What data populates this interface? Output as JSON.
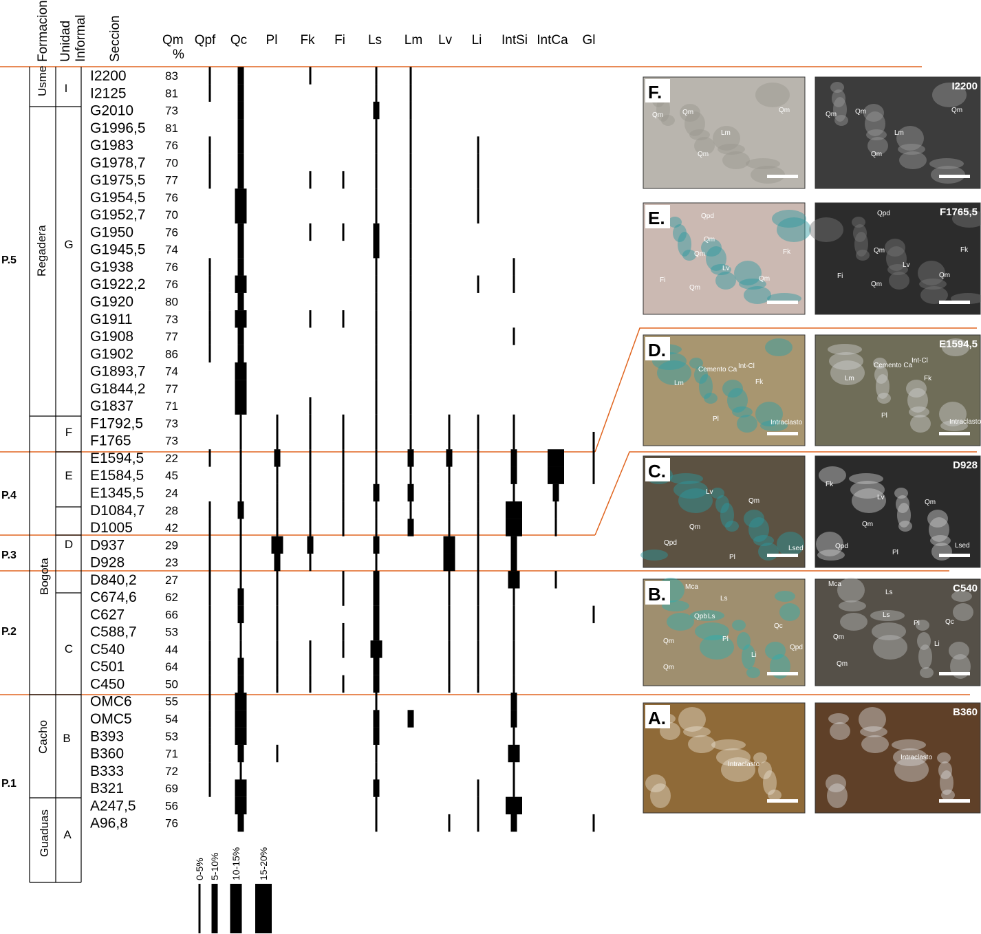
{
  "headers": {
    "formacion": "Formacion",
    "unidad": "Unidad",
    "informal": "Informal",
    "seccion": "Seccion",
    "qm": "Qm",
    "qm_unit": "%"
  },
  "columns": [
    {
      "name": "Qpf",
      "classes": [
        1,
        1,
        0,
        0,
        1,
        1,
        1,
        0,
        0,
        0,
        0,
        1,
        1,
        1,
        1,
        1,
        1,
        0,
        0,
        0,
        0,
        0,
        1,
        0,
        0,
        1,
        1,
        1,
        1,
        1,
        1,
        1,
        1,
        1,
        1,
        1,
        1,
        1,
        1,
        1,
        1,
        1,
        0,
        0
      ]
    },
    {
      "name": "Qc",
      "classes": [
        2,
        2,
        2,
        2,
        2,
        2,
        2,
        3,
        3,
        2,
        2,
        2,
        3,
        2,
        3,
        2,
        2,
        3,
        3,
        3,
        1,
        1,
        1,
        1,
        1,
        2,
        1,
        1,
        1,
        1,
        2,
        2,
        1,
        1,
        2,
        2,
        3,
        3,
        3,
        2,
        1,
        3,
        3,
        2
      ]
    },
    {
      "name": "Pl",
      "classes": [
        0,
        0,
        0,
        0,
        0,
        0,
        0,
        0,
        0,
        0,
        0,
        0,
        0,
        0,
        0,
        0,
        0,
        0,
        0,
        0,
        1,
        1,
        2,
        1,
        1,
        1,
        1,
        3,
        2,
        1,
        1,
        1,
        1,
        1,
        1,
        1,
        0,
        0,
        0,
        1,
        0,
        0,
        0,
        0
      ]
    },
    {
      "name": "Fk",
      "classes": [
        1,
        0,
        0,
        0,
        0,
        0,
        1,
        0,
        0,
        1,
        0,
        0,
        0,
        0,
        1,
        0,
        0,
        0,
        0,
        1,
        1,
        1,
        1,
        1,
        1,
        1,
        1,
        2,
        1,
        0,
        0,
        0,
        0,
        1,
        1,
        1,
        0,
        0,
        0,
        0,
        0,
        0,
        0,
        0
      ]
    },
    {
      "name": "Fi",
      "classes": [
        0,
        0,
        0,
        0,
        0,
        0,
        1,
        0,
        0,
        1,
        0,
        0,
        0,
        0,
        1,
        0,
        0,
        0,
        0,
        0,
        1,
        1,
        1,
        1,
        1,
        1,
        1,
        0,
        0,
        1,
        1,
        0,
        1,
        1,
        0,
        1,
        0,
        0,
        0,
        0,
        0,
        0,
        0,
        0
      ]
    },
    {
      "name": "Ls",
      "classes": [
        1,
        1,
        2,
        1,
        1,
        1,
        1,
        1,
        1,
        2,
        2,
        1,
        1,
        1,
        1,
        1,
        1,
        1,
        1,
        1,
        1,
        1,
        1,
        1,
        2,
        1,
        1,
        2,
        1,
        2,
        2,
        2,
        2,
        3,
        2,
        2,
        1,
        2,
        2,
        1,
        1,
        2,
        1,
        1
      ]
    },
    {
      "name": "Lm",
      "classes": [
        1,
        1,
        1,
        1,
        1,
        1,
        1,
        1,
        1,
        1,
        1,
        1,
        1,
        1,
        1,
        1,
        1,
        1,
        1,
        1,
        1,
        1,
        2,
        1,
        2,
        1,
        2,
        0,
        0,
        0,
        0,
        0,
        0,
        0,
        0,
        0,
        0,
        2,
        0,
        0,
        0,
        0,
        0,
        0
      ]
    },
    {
      "name": "Lv",
      "classes": [
        0,
        0,
        0,
        0,
        0,
        0,
        0,
        0,
        0,
        0,
        0,
        0,
        0,
        0,
        0,
        0,
        0,
        0,
        0,
        0,
        1,
        1,
        2,
        1,
        1,
        1,
        1,
        3,
        3,
        1,
        1,
        1,
        1,
        1,
        1,
        1,
        0,
        0,
        0,
        0,
        0,
        0,
        0,
        1
      ]
    },
    {
      "name": "Li",
      "classes": [
        0,
        0,
        0,
        0,
        1,
        1,
        1,
        1,
        1,
        0,
        0,
        0,
        1,
        0,
        0,
        0,
        0,
        0,
        0,
        0,
        1,
        1,
        1,
        1,
        1,
        1,
        1,
        1,
        1,
        1,
        1,
        1,
        1,
        1,
        1,
        1,
        0,
        0,
        0,
        0,
        0,
        1,
        1,
        1
      ]
    },
    {
      "name": "IntSi",
      "classes": [
        0,
        0,
        0,
        0,
        0,
        0,
        0,
        0,
        0,
        0,
        0,
        1,
        1,
        0,
        0,
        1,
        0,
        0,
        0,
        0,
        1,
        1,
        2,
        2,
        1,
        4,
        4,
        2,
        2,
        3,
        1,
        1,
        1,
        1,
        1,
        1,
        2,
        2,
        1,
        3,
        1,
        1,
        4,
        2
      ]
    },
    {
      "name": "IntCa",
      "classes": [
        0,
        0,
        0,
        0,
        0,
        0,
        0,
        0,
        0,
        0,
        0,
        0,
        0,
        0,
        0,
        0,
        0,
        0,
        0,
        0,
        0,
        0,
        4,
        4,
        2,
        1,
        1,
        0,
        0,
        1,
        0,
        0,
        0,
        0,
        0,
        0,
        0,
        0,
        0,
        0,
        0,
        0,
        0,
        0
      ]
    },
    {
      "name": "Gl",
      "classes": [
        0,
        0,
        0,
        0,
        0,
        0,
        0,
        0,
        0,
        0,
        0,
        0,
        0,
        0,
        0,
        0,
        0,
        0,
        0,
        0,
        0,
        1,
        1,
        1,
        0,
        0,
        0,
        0,
        0,
        0,
        0,
        1,
        0,
        0,
        0,
        0,
        0,
        0,
        0,
        0,
        0,
        0,
        0,
        1
      ]
    }
  ],
  "samples": [
    {
      "name": "I2200",
      "qm": 83
    },
    {
      "name": "I2125",
      "qm": 81
    },
    {
      "name": "G2010",
      "qm": 73
    },
    {
      "name": "G1996,5",
      "qm": 81
    },
    {
      "name": "G1983",
      "qm": 76
    },
    {
      "name": "G1978,7",
      "qm": 70
    },
    {
      "name": "G1975,5",
      "qm": 77
    },
    {
      "name": "G1954,5",
      "qm": 76
    },
    {
      "name": "G1952,7",
      "qm": 70
    },
    {
      "name": "G1950",
      "qm": 76
    },
    {
      "name": "G1945,5",
      "qm": 74
    },
    {
      "name": "G1938",
      "qm": 76
    },
    {
      "name": "G1922,2",
      "qm": 76
    },
    {
      "name": "G1920",
      "qm": 80
    },
    {
      "name": "G1911",
      "qm": 73
    },
    {
      "name": "G1908",
      "qm": 77
    },
    {
      "name": "G1902",
      "qm": 86
    },
    {
      "name": "G1893,7",
      "qm": 74
    },
    {
      "name": "G1844,2",
      "qm": 77
    },
    {
      "name": "G1837",
      "qm": 71
    },
    {
      "name": "F1792,5",
      "qm": 73
    },
    {
      "name": "F1765",
      "qm": 73
    },
    {
      "name": "E1594,5",
      "qm": 22
    },
    {
      "name": "E1584,5",
      "qm": 45
    },
    {
      "name": "E1345,5",
      "qm": 24
    },
    {
      "name": "D1084,7",
      "qm": 28
    },
    {
      "name": "D1005",
      "qm": 42
    },
    {
      "name": "D937",
      "qm": 29
    },
    {
      "name": "D928",
      "qm": 23
    },
    {
      "name": "D840,2",
      "qm": 27
    },
    {
      "name": "C674,6",
      "qm": 62
    },
    {
      "name": "C627",
      "qm": 66
    },
    {
      "name": "C588,7",
      "qm": 53
    },
    {
      "name": "C540",
      "qm": 44
    },
    {
      "name": "C501",
      "qm": 64
    },
    {
      "name": "C450",
      "qm": 50
    },
    {
      "name": "OMC6",
      "qm": 55
    },
    {
      "name": "OMC5",
      "qm": 54
    },
    {
      "name": "B393",
      "qm": 53
    },
    {
      "name": "B360",
      "qm": 71
    },
    {
      "name": "B333",
      "qm": 72
    },
    {
      "name": "B321",
      "qm": 69
    },
    {
      "name": "A247,5",
      "qm": 56
    },
    {
      "name": "A96,8",
      "qm": 76
    }
  ],
  "formations": [
    "Usme",
    "Regadera",
    "Bogota",
    "Cacho",
    "Guaduas"
  ],
  "units": [
    "I",
    "G",
    "F",
    "E",
    "D",
    "C",
    "B",
    "A"
  ],
  "periods": [
    "P.5",
    "P.4",
    "P.3",
    "P.2",
    "P.1"
  ],
  "legend": [
    "0-5%",
    "5-10%",
    "10-15%",
    "15-20%"
  ],
  "panels": [
    {
      "letter": "F.",
      "sample": "I2200",
      "left_labels": [
        "Qm",
        "Qm",
        "Qm",
        "Lm",
        "Qm"
      ],
      "right_labels": [
        "Qm",
        "Qm",
        "Qm",
        "Lm",
        "Qm"
      ]
    },
    {
      "letter": "E.",
      "sample": "F1765,5",
      "left_labels": [
        "Qpd",
        "Qm",
        "Qm",
        "Lv",
        "Fk",
        "Fi",
        "Qm",
        "Qm"
      ],
      "right_labels": [
        "Qpd",
        "Qm",
        "Lv",
        "Fk",
        "Fi",
        "Qm",
        "Qm"
      ]
    },
    {
      "letter": "D.",
      "sample": "E1594,5",
      "left_labels": [
        "Cemento Ca",
        "Int-Cl",
        "Lm",
        "Fk",
        "Pl",
        "Intraclasto"
      ],
      "right_labels": [
        "Cemento Ca",
        "Int-Cl",
        "Lm",
        "Fk",
        "Pl",
        "Intraclasto"
      ]
    },
    {
      "letter": "C.",
      "sample": "D928",
      "left_labels": [
        "Lv",
        "Qm",
        "Qm",
        "Qpd",
        "Pl",
        "Lsed"
      ],
      "right_labels": [
        "Fk",
        "Lv",
        "Qm",
        "Qm",
        "Qpd",
        "Pl",
        "Lsed"
      ]
    },
    {
      "letter": "B.",
      "sample": "C540",
      "left_labels": [
        "Mca",
        "Ls",
        "Ls",
        "Qpb",
        "Qc",
        "Pl",
        "Qm",
        "Qpd",
        "Li",
        "Qm"
      ],
      "right_labels": [
        "Mca",
        "Ls",
        "Ls",
        "Pl",
        "Qc",
        "Qm",
        "Li",
        "Qm"
      ]
    },
    {
      "letter": "A.",
      "sample": "B360",
      "left_labels": [
        "Intraclasto"
      ],
      "right_labels": [
        "Intraclasto"
      ]
    }
  ]
}
